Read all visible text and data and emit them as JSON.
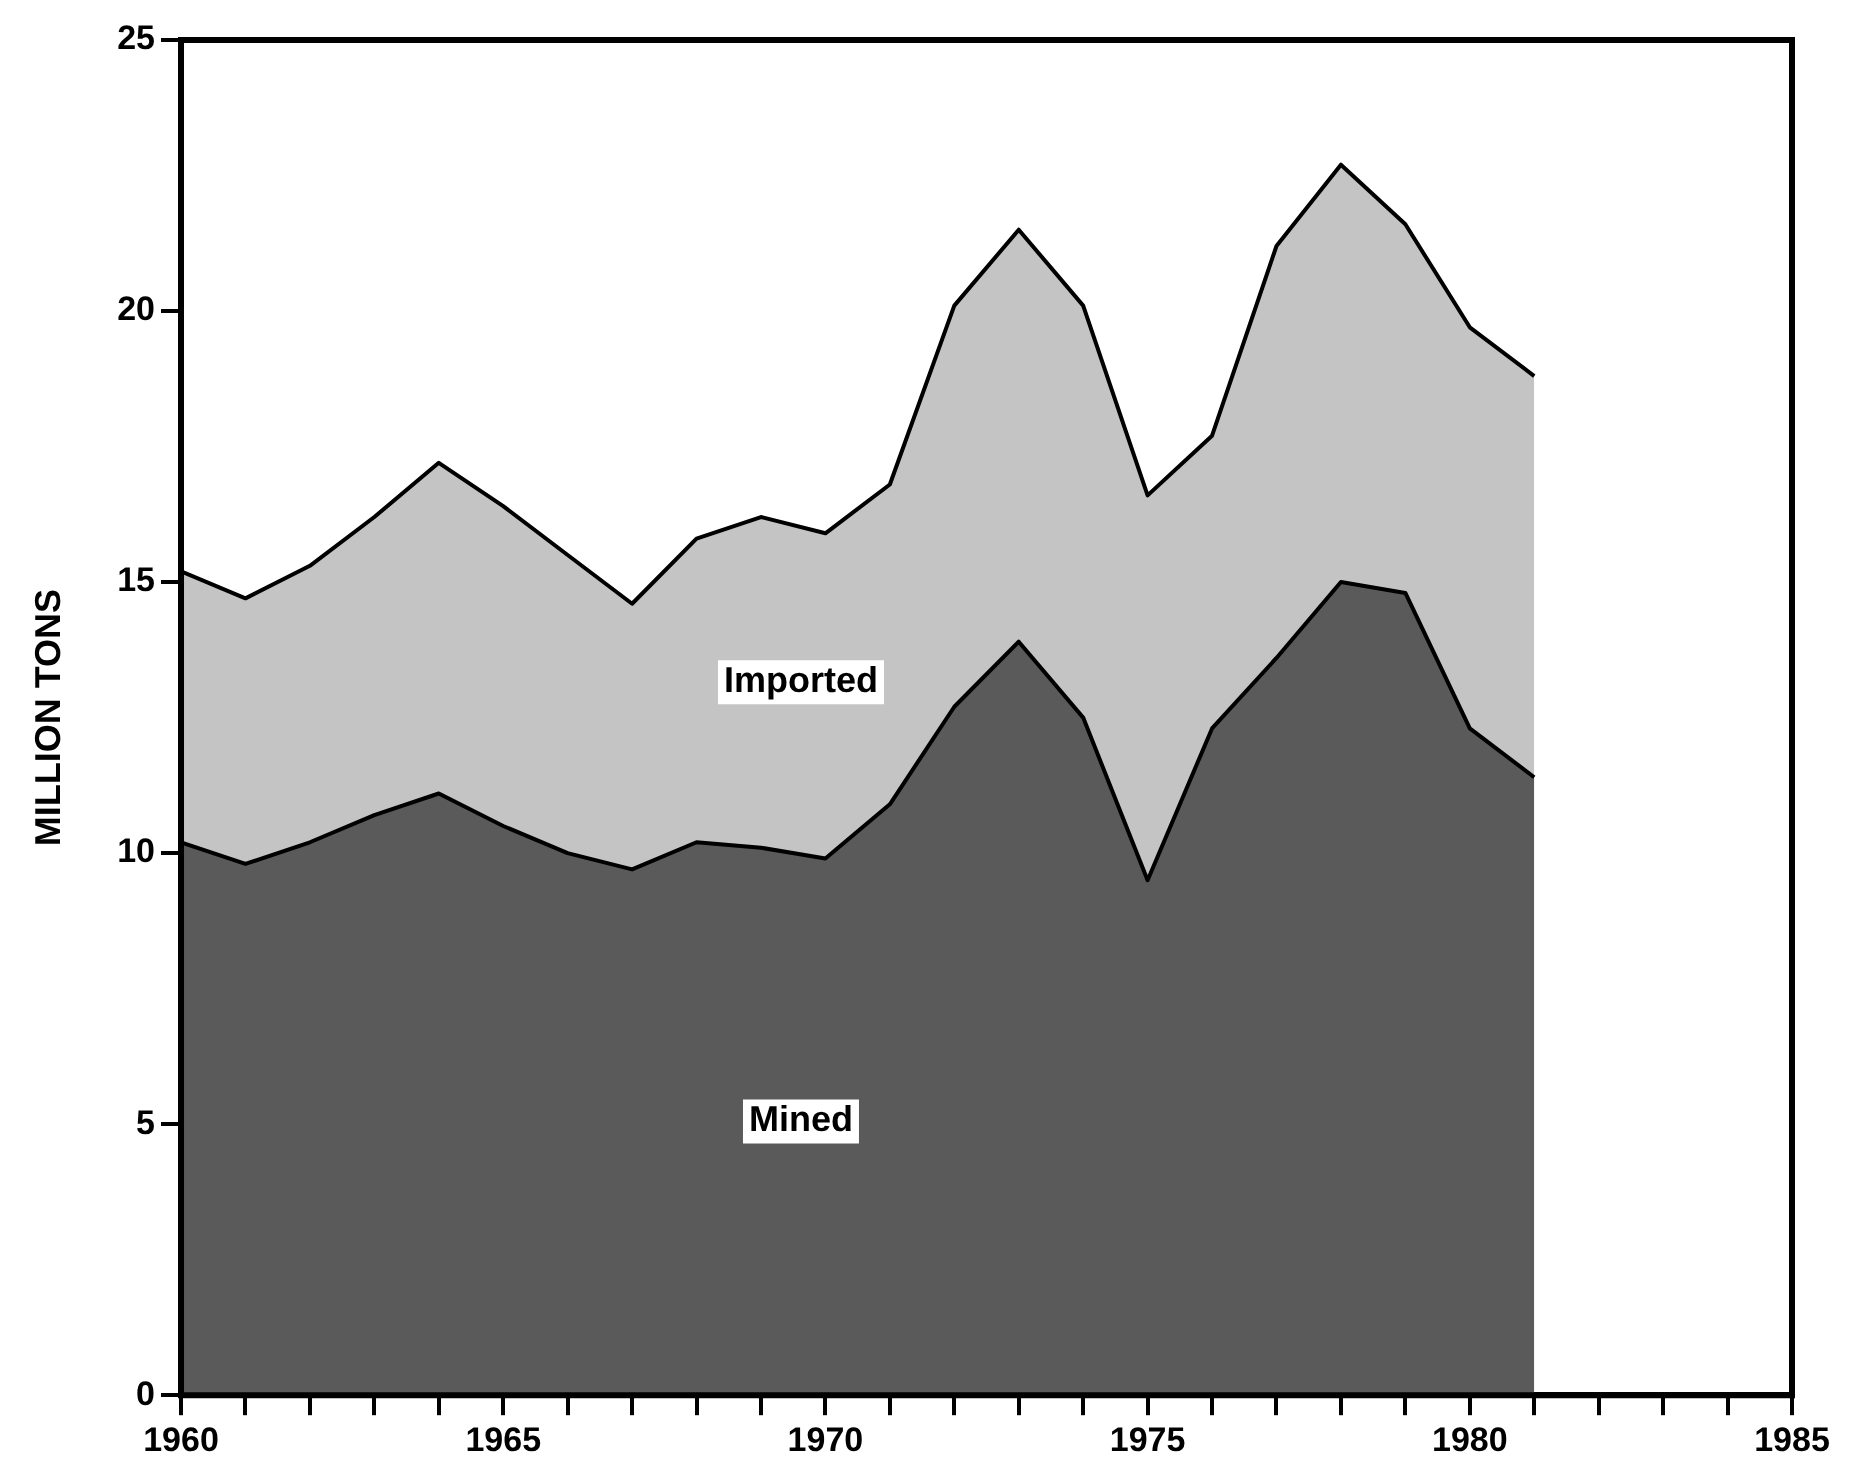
{
  "chart_data": {
    "type": "area",
    "ylabel": "MILLION TONS",
    "stacked": true,
    "x": [
      1960,
      1961,
      1962,
      1963,
      1964,
      1965,
      1966,
      1967,
      1968,
      1969,
      1970,
      1971,
      1972,
      1973,
      1974,
      1975,
      1976,
      1977,
      1978,
      1979,
      1980,
      1981
    ],
    "series": [
      {
        "name": "Mined",
        "color": "#5a5a5a",
        "values": [
          10.2,
          9.8,
          10.2,
          10.7,
          11.1,
          10.5,
          10.0,
          9.7,
          10.2,
          10.1,
          9.9,
          10.9,
          12.7,
          13.9,
          12.5,
          9.5,
          12.3,
          13.6,
          15.0,
          14.8,
          12.3,
          11.4
        ]
      },
      {
        "name": "Imported",
        "color": "#c4c4c4",
        "values": [
          5.0,
          4.9,
          5.1,
          5.5,
          6.1,
          5.9,
          5.5,
          4.9,
          5.6,
          6.1,
          6.0,
          5.9,
          7.4,
          7.6,
          7.6,
          7.1,
          5.4,
          7.6,
          7.7,
          6.8,
          7.4,
          7.4
        ]
      }
    ],
    "xlim": [
      1960,
      1985
    ],
    "xticks": [
      1960,
      {
        "value": 1961,
        "label": null
      },
      {
        "value": 1962,
        "label": null
      },
      {
        "value": 1963,
        "label": null
      },
      {
        "value": 1964,
        "label": null
      },
      1965,
      {
        "value": 1966,
        "label": null
      },
      {
        "value": 1967,
        "label": null
      },
      {
        "value": 1968,
        "label": null
      },
      {
        "value": 1969,
        "label": null
      },
      1970,
      {
        "value": 1971,
        "label": null
      },
      {
        "value": 1972,
        "label": null
      },
      {
        "value": 1973,
        "label": null
      },
      {
        "value": 1974,
        "label": null
      },
      1975,
      {
        "value": 1976,
        "label": null
      },
      {
        "value": 1977,
        "label": null
      },
      {
        "value": 1978,
        "label": null
      },
      {
        "value": 1979,
        "label": null
      },
      1980,
      {
        "value": 1981,
        "label": null
      },
      {
        "value": 1982,
        "label": null
      },
      {
        "value": 1983,
        "label": null
      },
      {
        "value": 1984,
        "label": null
      },
      1985
    ],
    "ylim": [
      0,
      25
    ],
    "yticks": [
      0,
      5,
      10,
      15,
      20,
      25
    ],
    "grid": false,
    "legend": false,
    "line_style": "solid",
    "marker": "none"
  }
}
